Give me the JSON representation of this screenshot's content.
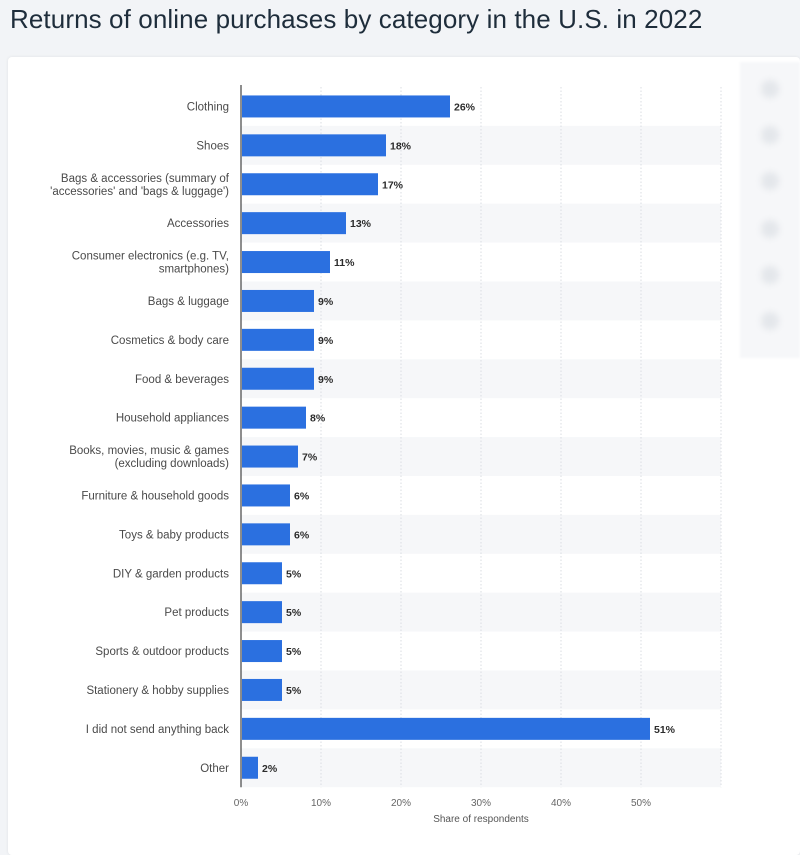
{
  "page": {
    "title": "Returns of online purchases by category in the U.S. in 2022"
  },
  "chart_data": {
    "type": "bar",
    "orientation": "horizontal",
    "title": "",
    "xlabel": "Share of respondents",
    "ylabel": "",
    "xlim": [
      0,
      60
    ],
    "xticks": [
      "0%",
      "10%",
      "20%",
      "30%",
      "40%",
      "50%"
    ],
    "value_suffix": "%",
    "grid": true,
    "bar_color": "#2b70e0",
    "categories": [
      [
        "Clothing"
      ],
      [
        "Shoes"
      ],
      [
        "Bags & accessories (summary of",
        "'accessories' and 'bags & luggage')"
      ],
      [
        "Accessories"
      ],
      [
        "Consumer electronics (e.g. TV,",
        "smartphones)"
      ],
      [
        "Bags & luggage"
      ],
      [
        "Cosmetics & body care"
      ],
      [
        "Food & beverages"
      ],
      [
        "Household appliances"
      ],
      [
        "Books, movies, music & games",
        "(excluding downloads)"
      ],
      [
        "Furniture & household goods"
      ],
      [
        "Toys & baby products"
      ],
      [
        "DIY & garden products"
      ],
      [
        "Pet products"
      ],
      [
        "Sports & outdoor products"
      ],
      [
        "Stationery & hobby supplies"
      ],
      [
        "I did not send anything back"
      ],
      [
        "Other"
      ]
    ],
    "values": [
      26,
      18,
      17,
      13,
      11,
      9,
      9,
      9,
      8,
      7,
      6,
      6,
      5,
      5,
      5,
      5,
      51,
      2
    ]
  }
}
